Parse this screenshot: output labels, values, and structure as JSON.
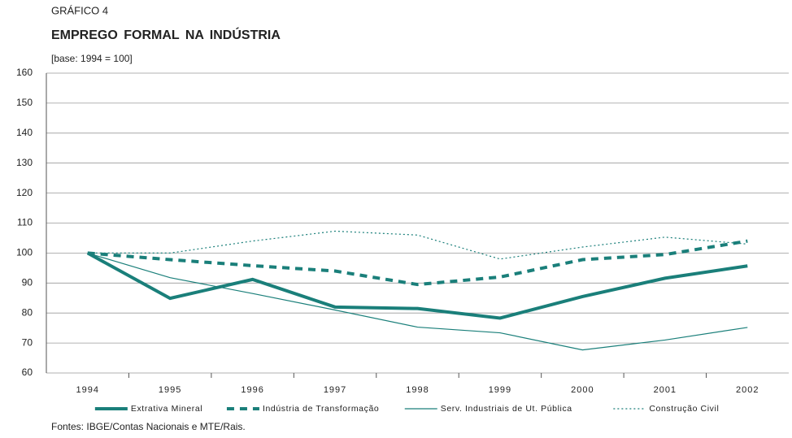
{
  "chart_data": {
    "type": "line",
    "label": "GRÁFICO 4",
    "title": "EMPREGO FORMAL NA INDÚSTRIA",
    "subtitle": "[base: 1994 = 100]",
    "source": "Fontes: IBGE/Contas Nacionais e MTE/Rais.",
    "categories": [
      "1994",
      "1995",
      "1996",
      "1997",
      "1998",
      "1999",
      "2000",
      "2001",
      "2002"
    ],
    "series": [
      {
        "name": "Extrativa Mineral",
        "color": "#1a7f7a",
        "line_style": "solid",
        "line_weight": "thick",
        "values": [
          100,
          84.9,
          91.2,
          82,
          81.5,
          78.3,
          85.5,
          91.6,
          95.7
        ]
      },
      {
        "name": "Indústria de Transformação",
        "color": "#1a7f7a",
        "line_style": "dashed",
        "line_weight": "thick",
        "values": [
          100,
          97.8,
          95.8,
          94,
          89.5,
          92,
          97.8,
          99.5,
          104
        ]
      },
      {
        "name": "Serv. Industriais de Ut. Pública",
        "color": "#1a7f7a",
        "line_style": "solid",
        "line_weight": "thin",
        "values": [
          100,
          91.8,
          86.5,
          81,
          75.3,
          73.4,
          67.7,
          71,
          75.2
        ]
      },
      {
        "name": "Construção Civil",
        "color": "#1a7f7a",
        "line_style": "dotted",
        "line_weight": "thin",
        "values": [
          100,
          100,
          104,
          107.3,
          106,
          98,
          102,
          105.3,
          103
        ]
      }
    ],
    "ylim": [
      60,
      160
    ],
    "yticks": [
      60,
      70,
      80,
      90,
      100,
      110,
      120,
      130,
      140,
      150,
      160
    ],
    "grid": true
  }
}
